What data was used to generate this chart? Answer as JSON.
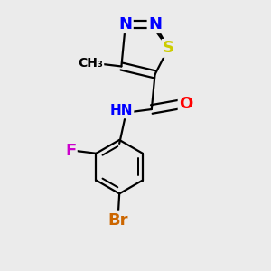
{
  "background_color": "#ebebeb",
  "atom_colors": {
    "C": "#000000",
    "H": "#606060",
    "N": "#0000ff",
    "O": "#ff0000",
    "S": "#cccc00",
    "F": "#cc00cc",
    "Br": "#cc6600"
  },
  "bond_color": "#000000",
  "bond_width": 1.6,
  "font_size_atom": 13,
  "font_size_small": 11
}
